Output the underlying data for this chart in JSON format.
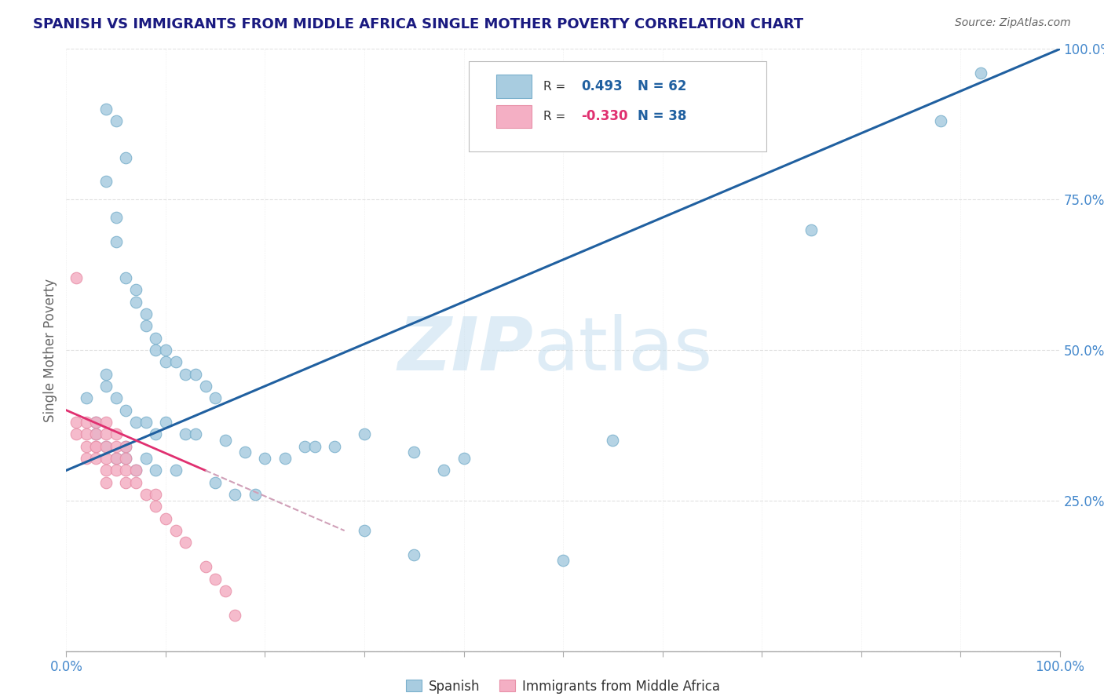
{
  "title": "SPANISH VS IMMIGRANTS FROM MIDDLE AFRICA SINGLE MOTHER POVERTY CORRELATION CHART",
  "source": "Source: ZipAtlas.com",
  "ylabel": "Single Mother Poverty",
  "xlim": [
    0.0,
    1.0
  ],
  "ylim": [
    0.0,
    1.0
  ],
  "legend_R1": "0.493",
  "legend_N1": "62",
  "legend_R2": "-0.330",
  "legend_N2": "38",
  "blue_scatter_color": "#a8cce0",
  "pink_scatter_color": "#f4afc4",
  "blue_edge_color": "#7ab0cc",
  "pink_edge_color": "#e890a8",
  "blue_line_color": "#2060a0",
  "pink_line_color": "#e03070",
  "pink_dash_color": "#d0a0b8",
  "title_color": "#1a1a80",
  "axis_label_color": "#666666",
  "tick_label_color": "#4488cc",
  "grid_color": "#dddddd",
  "spanish_x": [
    0.02,
    0.04,
    0.05,
    0.06,
    0.04,
    0.05,
    0.05,
    0.06,
    0.07,
    0.07,
    0.08,
    0.08,
    0.09,
    0.09,
    0.1,
    0.1,
    0.11,
    0.12,
    0.13,
    0.14,
    0.15,
    0.04,
    0.04,
    0.05,
    0.06,
    0.07,
    0.08,
    0.09,
    0.1,
    0.12,
    0.13,
    0.16,
    0.18,
    0.2,
    0.22,
    0.24,
    0.27,
    0.3,
    0.35,
    0.38,
    0.4,
    0.03,
    0.03,
    0.04,
    0.05,
    0.06,
    0.06,
    0.07,
    0.08,
    0.09,
    0.11,
    0.15,
    0.17,
    0.19,
    0.25,
    0.3,
    0.35,
    0.5,
    0.55,
    0.75,
    0.88,
    0.92
  ],
  "spanish_y": [
    0.42,
    0.9,
    0.88,
    0.82,
    0.78,
    0.72,
    0.68,
    0.62,
    0.6,
    0.58,
    0.56,
    0.54,
    0.52,
    0.5,
    0.5,
    0.48,
    0.48,
    0.46,
    0.46,
    0.44,
    0.42,
    0.44,
    0.46,
    0.42,
    0.4,
    0.38,
    0.38,
    0.36,
    0.38,
    0.36,
    0.36,
    0.35,
    0.33,
    0.32,
    0.32,
    0.34,
    0.34,
    0.36,
    0.33,
    0.3,
    0.32,
    0.38,
    0.36,
    0.34,
    0.32,
    0.34,
    0.32,
    0.3,
    0.32,
    0.3,
    0.3,
    0.28,
    0.26,
    0.26,
    0.34,
    0.2,
    0.16,
    0.15,
    0.35,
    0.7,
    0.88,
    0.96
  ],
  "immigrants_x": [
    0.01,
    0.01,
    0.01,
    0.02,
    0.02,
    0.02,
    0.02,
    0.03,
    0.03,
    0.03,
    0.03,
    0.03,
    0.04,
    0.04,
    0.04,
    0.04,
    0.04,
    0.04,
    0.05,
    0.05,
    0.05,
    0.05,
    0.06,
    0.06,
    0.06,
    0.06,
    0.07,
    0.07,
    0.08,
    0.09,
    0.09,
    0.1,
    0.11,
    0.12,
    0.14,
    0.15,
    0.16,
    0.17
  ],
  "immigrants_y": [
    0.62,
    0.38,
    0.36,
    0.38,
    0.36,
    0.34,
    0.32,
    0.38,
    0.36,
    0.34,
    0.34,
    0.32,
    0.38,
    0.36,
    0.34,
    0.32,
    0.3,
    0.28,
    0.36,
    0.34,
    0.32,
    0.3,
    0.34,
    0.32,
    0.3,
    0.28,
    0.3,
    0.28,
    0.26,
    0.26,
    0.24,
    0.22,
    0.2,
    0.18,
    0.14,
    0.12,
    0.1,
    0.06
  ]
}
